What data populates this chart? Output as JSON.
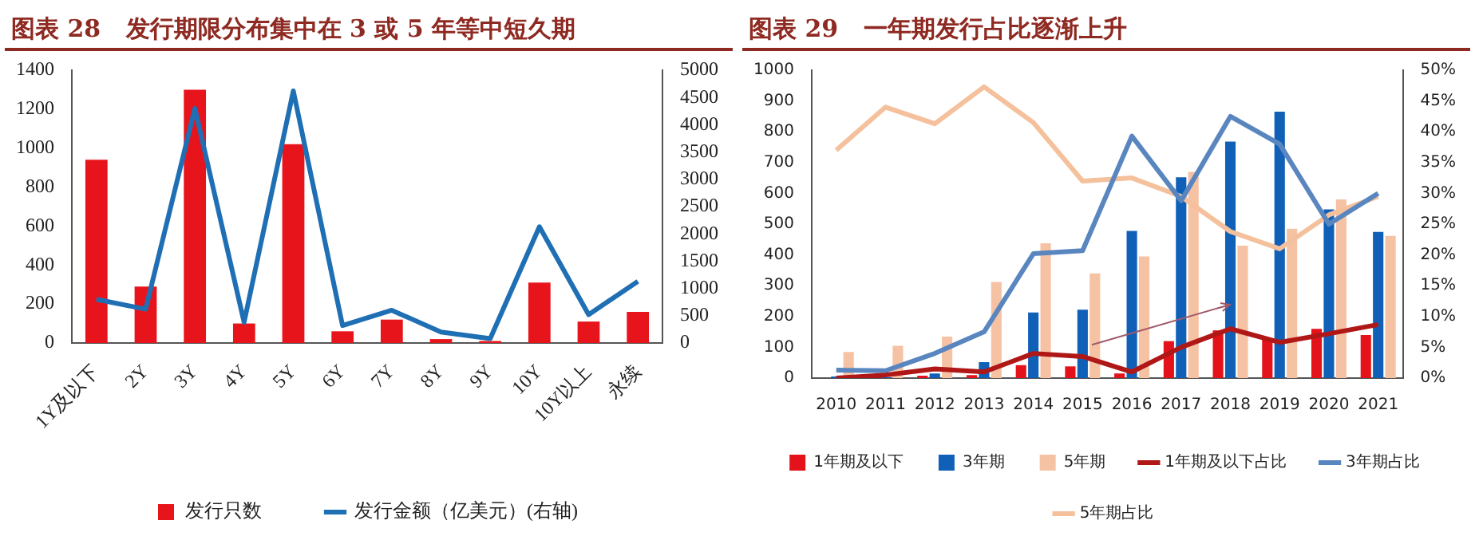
{
  "chart_data": [
    {
      "type": "bar",
      "title": "图表 28   发行期限分布集中在 3 或 5 年等中短久期",
      "categories": [
        "1Y及以下",
        "2Y",
        "3Y",
        "4Y",
        "5Y",
        "6Y",
        "7Y",
        "8Y",
        "9Y",
        "10Y",
        "10Y以上",
        "永续"
      ],
      "series": [
        {
          "name": "发行只数",
          "color": "#e8141c",
          "values": [
            940,
            290,
            1300,
            100,
            1020,
            60,
            120,
            20,
            10,
            310,
            110,
            160
          ]
        },
        {
          "name": "发行金额（亿美元）(右轴)",
          "type": "line",
          "axis": "y2",
          "color": "#1f6fb4",
          "values": [
            800,
            620,
            4300,
            380,
            4620,
            320,
            600,
            200,
            80,
            2130,
            520,
            1130
          ]
        }
      ],
      "ylim": [
        0,
        1400
      ],
      "yticks": [
        0,
        200,
        400,
        600,
        800,
        1000,
        1200,
        1400
      ],
      "y2lim": [
        0,
        5000
      ],
      "y2ticks": [
        0,
        500,
        1000,
        1500,
        2000,
        2500,
        3000,
        3500,
        4000,
        4500,
        5000
      ],
      "grid": false,
      "legend": "bottom"
    },
    {
      "type": "bar",
      "title": "图表 29   一年期发行占比逐渐上升",
      "categories": [
        "2010",
        "2011",
        "2012",
        "2013",
        "2014",
        "2015",
        "2016",
        "2017",
        "2018",
        "2019",
        "2020",
        "2021"
      ],
      "series": [
        {
          "name": "1年期及以下",
          "color": "#e3121b",
          "values": [
            0,
            0,
            8,
            10,
            42,
            38,
            15,
            120,
            155,
            125,
            160,
            140
          ]
        },
        {
          "name": "3年期",
          "color": "#1060b8",
          "values": [
            5,
            3,
            15,
            52,
            213,
            222,
            478,
            652,
            768,
            865,
            548,
            475
          ]
        },
        {
          "name": "5年期",
          "color": "#f6c2a4",
          "values": [
            85,
            105,
            135,
            312,
            438,
            340,
            395,
            670,
            430,
            485,
            580,
            462
          ]
        },
        {
          "name": "1年期及以下占比",
          "type": "line",
          "axis": "y2",
          "color": "#b01818",
          "values": [
            0,
            0.5,
            1.5,
            1,
            4,
            3.5,
            1,
            5,
            8,
            5.8,
            7.2,
            8.7
          ]
        },
        {
          "name": "3年期占比",
          "type": "line",
          "axis": "y2",
          "color": "#5a86c0",
          "values": [
            1.3,
            1.2,
            4,
            7.5,
            20.2,
            20.7,
            39.3,
            28.8,
            42.5,
            38,
            25,
            30
          ]
        },
        {
          "name": "5年期占比",
          "type": "line",
          "axis": "y2",
          "color": "#f5c09c",
          "values": [
            37,
            44,
            41.3,
            47.3,
            41.5,
            32,
            32.5,
            29.5,
            23.8,
            21,
            26.5,
            29.5
          ]
        }
      ],
      "ylim": [
        0,
        1000
      ],
      "yticks": [
        0,
        100,
        200,
        300,
        400,
        500,
        600,
        700,
        800,
        900,
        1000
      ],
      "y2lim": [
        0,
        50
      ],
      "y2ticks": [
        {
          "value": 0,
          "label": "0%"
        },
        {
          "value": 5,
          "label": "5%"
        },
        {
          "value": 10,
          "label": "10%"
        },
        {
          "value": 15,
          "label": "15%"
        },
        {
          "value": 20,
          "label": "20%"
        },
        {
          "value": 25,
          "label": "25%"
        },
        {
          "value": 30,
          "label": "30%"
        },
        {
          "value": 35,
          "label": "35%"
        },
        {
          "value": 40,
          "label": "40%"
        },
        {
          "value": 45,
          "label": "45%"
        },
        {
          "value": 50,
          "label": "50%"
        }
      ],
      "grid": false,
      "legend": "bottom"
    }
  ]
}
